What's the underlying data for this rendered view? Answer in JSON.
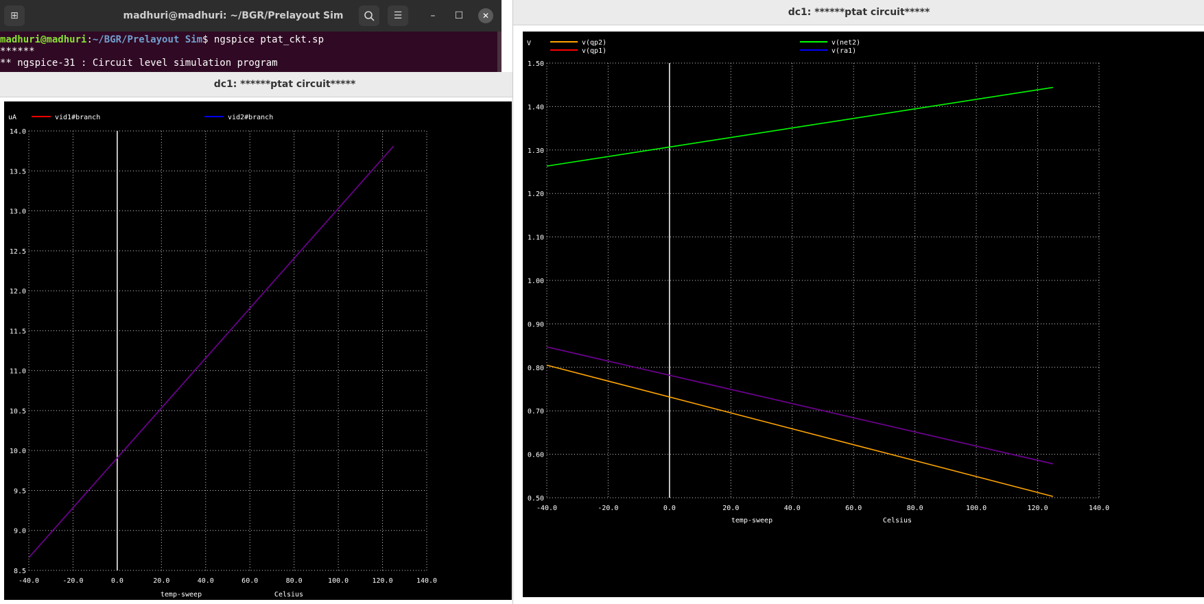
{
  "terminal": {
    "title": "madhuri@madhuri: ~/BGR/Prelayout Sim",
    "user_host": "madhuri@madhuri",
    "path": "~/BGR/Prelayout Sim",
    "command": "$ ngspice ptat_ckt.sp",
    "line2": "******",
    "line3": "** ngspice-31 : Circuit level simulation program",
    "new_tab_icon": "new-tab-icon",
    "search_icon": "search-icon",
    "menu_icon": "hamburger-menu-icon",
    "minimize_icon": "minimize-icon",
    "maximize_icon": "maximize-icon",
    "close_icon": "close-icon"
  },
  "left_window": {
    "title": "dc1: ******ptat circuit*****"
  },
  "right_window": {
    "title": "dc1: ******ptat circuit*****"
  },
  "chart_data": [
    {
      "type": "line",
      "units_label": "uA",
      "xlabel": "temp-sweep",
      "xunit": "Celsius",
      "xlim": [
        -40,
        140
      ],
      "ylim": [
        8.5,
        14.0
      ],
      "xticks": [
        -40,
        -20,
        0,
        20,
        40,
        60,
        80,
        100,
        120,
        140
      ],
      "xtick_labels": [
        "-40.0",
        "-20.0",
        "0.0",
        "20.0",
        "40.0",
        "60.0",
        "80.0",
        "100.0",
        "120.0",
        "140.0"
      ],
      "yticks": [
        8.5,
        9.0,
        9.5,
        10.0,
        10.5,
        11.0,
        11.5,
        12.0,
        12.5,
        13.0,
        13.5,
        14.0
      ],
      "ytick_labels": [
        "8.5",
        "9.0",
        "9.5",
        "10.0",
        "10.5",
        "11.0",
        "11.5",
        "12.0",
        "12.5",
        "13.0",
        "13.5",
        "14.0"
      ],
      "grid": true,
      "legend_position": "top",
      "series": [
        {
          "name": "vid1#branch",
          "color": "#ff0000",
          "x": [
            -40,
            125
          ],
          "y": [
            8.66,
            13.81
          ]
        },
        {
          "name": "vid2#branch",
          "color": "#0000ff",
          "x": [
            -40,
            125
          ],
          "y": [
            8.66,
            13.81
          ]
        }
      ]
    },
    {
      "type": "line",
      "units_label": "V",
      "xlabel": "temp-sweep",
      "xunit": "Celsius",
      "xlim": [
        -40,
        140
      ],
      "ylim": [
        0.5,
        1.5
      ],
      "xticks": [
        -40,
        -20,
        0,
        20,
        40,
        60,
        80,
        100,
        120,
        140
      ],
      "xtick_labels": [
        "-40.0",
        "-20.0",
        "0.0",
        "20.0",
        "40.0",
        "60.0",
        "80.0",
        "100.0",
        "120.0",
        "140.0"
      ],
      "yticks": [
        0.5,
        0.6,
        0.7,
        0.8,
        0.9,
        1.0,
        1.1,
        1.2,
        1.3,
        1.4,
        1.5
      ],
      "ytick_labels": [
        "0.50",
        "0.60",
        "0.70",
        "0.80",
        "0.90",
        "1.00",
        "1.10",
        "1.20",
        "1.30",
        "1.40",
        "1.50"
      ],
      "grid": true,
      "legend_position": "top",
      "series": [
        {
          "name": "v(qp2)",
          "color": "#ffa500",
          "x": [
            -40,
            125
          ],
          "y": [
            0.805,
            0.503
          ]
        },
        {
          "name": "v(net2)",
          "color": "#00ff00",
          "x": [
            -40,
            125
          ],
          "y": [
            1.263,
            1.444
          ]
        },
        {
          "name": "v(qp1)",
          "color": "#ff0000",
          "x": [
            -40,
            125
          ],
          "y": [
            0.847,
            0.578
          ]
        },
        {
          "name": "v(ra1)",
          "color": "#0000ff",
          "x": [
            -40,
            125
          ],
          "y": [
            0.847,
            0.578
          ]
        }
      ]
    }
  ]
}
